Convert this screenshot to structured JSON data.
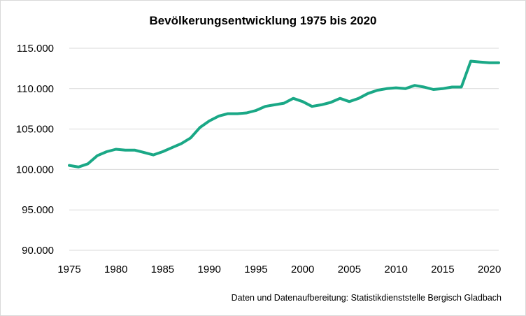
{
  "chart_data": {
    "type": "line",
    "title": "Bevölkerungsentwicklung 1975 bis 2020",
    "source_note": "Daten und Datenaufbereitung: Statistikdienststelle Bergisch Gladbach",
    "xlabel": "",
    "ylabel": "",
    "xlim": [
      1975,
      2021
    ],
    "ylim": [
      90000,
      115000
    ],
    "x_ticks": [
      1975,
      1980,
      1985,
      1990,
      1995,
      2000,
      2005,
      2010,
      2015,
      2020
    ],
    "x_tick_labels": [
      "1975",
      "1980",
      "1985",
      "1990",
      "1995",
      "2000",
      "2005",
      "2010",
      "2015",
      "2020"
    ],
    "y_ticks": [
      90000,
      95000,
      100000,
      105000,
      110000,
      115000
    ],
    "y_tick_labels": [
      "90.000",
      "95.000",
      "100.000",
      "105.000",
      "110.000",
      "115.000"
    ],
    "grid": "horizontal",
    "legend": "none",
    "line_color": "#1aa886",
    "grid_color": "#d9d9d9",
    "x": [
      1975,
      1976,
      1977,
      1978,
      1979,
      1980,
      1981,
      1982,
      1983,
      1984,
      1985,
      1986,
      1987,
      1988,
      1989,
      1990,
      1991,
      1992,
      1993,
      1994,
      1995,
      1996,
      1997,
      1998,
      1999,
      2000,
      2001,
      2002,
      2003,
      2004,
      2005,
      2006,
      2007,
      2008,
      2009,
      2010,
      2011,
      2012,
      2013,
      2014,
      2015,
      2016,
      2017,
      2018,
      2019,
      2020,
      2021
    ],
    "series": [
      {
        "values": [
          100500,
          100300,
          100700,
          101700,
          102200,
          102500,
          102400,
          102400,
          102100,
          101800,
          102200,
          102700,
          103200,
          103900,
          105200,
          106000,
          106600,
          106900,
          106900,
          107000,
          107300,
          107800,
          108000,
          108200,
          108800,
          108400,
          107800,
          108000,
          108300,
          108800,
          108400,
          108800,
          109400,
          109800,
          110000,
          110100,
          110000,
          110400,
          110200,
          109900,
          110000,
          110200,
          110200,
          113400,
          113300,
          113200,
          113200
        ]
      }
    ]
  }
}
